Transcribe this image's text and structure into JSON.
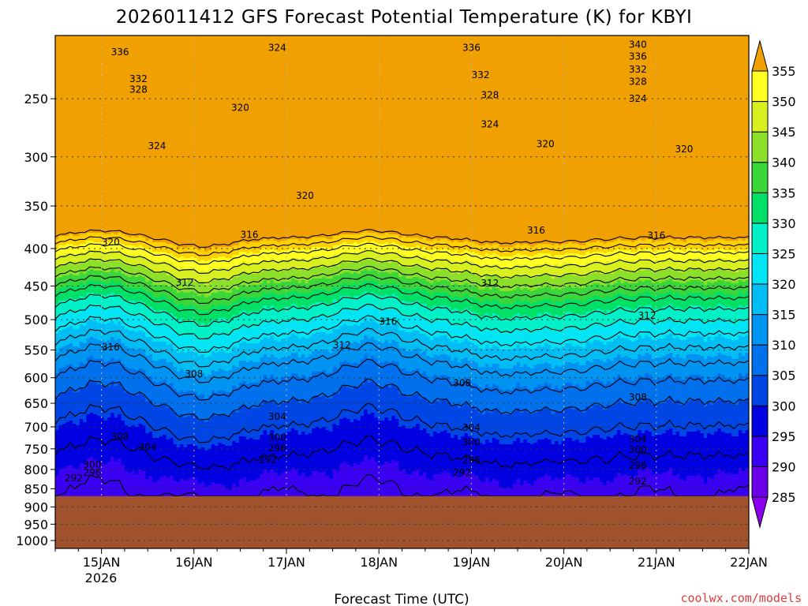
{
  "chart_data": {
    "type": "heatmap",
    "title": "2026011412 GFS Forecast Potential Temperature (K) for KBYI",
    "xlabel": "Forecast Time (UTC)",
    "ylabel": "",
    "credit": "coolwx.com/models",
    "x_ticks": [
      "15JAN",
      "16JAN",
      "17JAN",
      "18JAN",
      "19JAN",
      "20JAN",
      "21JAN",
      "22JAN"
    ],
    "x_year_label": "2026",
    "y_ticks": [
      250,
      300,
      350,
      400,
      450,
      500,
      550,
      600,
      650,
      700,
      750,
      800,
      850,
      900,
      950,
      1000
    ],
    "y_scale": "log-pressure",
    "ylim": [
      1025,
      205
    ],
    "xlim_days": [
      14.5,
      22.0
    ],
    "grid": true,
    "ground_level_hpa": 870,
    "ground_color": "#a0522d",
    "colorbar": {
      "levels": [
        285,
        290,
        295,
        300,
        305,
        310,
        315,
        320,
        325,
        330,
        335,
        340,
        345,
        350,
        355
      ],
      "colors": [
        "#8a00ee",
        "#6a00ea",
        "#3a00f2",
        "#0000e0",
        "#0046e4",
        "#0070ec",
        "#0094f2",
        "#00bef4",
        "#00e4f4",
        "#00f0c8",
        "#00e066",
        "#3ad63a",
        "#8ce02a",
        "#d8f020",
        "#ffff22",
        "#ffd000",
        "#f0a000"
      ]
    },
    "contour_labels": [
      {
        "text": "336",
        "x": 15.2,
        "p": 216
      },
      {
        "text": "332",
        "x": 15.4,
        "p": 235
      },
      {
        "text": "328",
        "x": 15.4,
        "p": 243
      },
      {
        "text": "324",
        "x": 15.6,
        "p": 290
      },
      {
        "text": "320",
        "x": 15.1,
        "p": 392
      },
      {
        "text": "316",
        "x": 15.1,
        "p": 545
      },
      {
        "text": "308",
        "x": 15.2,
        "p": 722
      },
      {
        "text": "304",
        "x": 15.5,
        "p": 746
      },
      {
        "text": "300",
        "x": 14.9,
        "p": 788
      },
      {
        "text": "296",
        "x": 14.9,
        "p": 808
      },
      {
        "text": "292",
        "x": 14.7,
        "p": 822
      },
      {
        "text": "324",
        "x": 16.9,
        "p": 213
      },
      {
        "text": "320",
        "x": 16.5,
        "p": 257
      },
      {
        "text": "316",
        "x": 16.6,
        "p": 383
      },
      {
        "text": "312",
        "x": 15.9,
        "p": 445
      },
      {
        "text": "308",
        "x": 16.0,
        "p": 593
      },
      {
        "text": "304",
        "x": 16.9,
        "p": 678
      },
      {
        "text": "300",
        "x": 16.9,
        "p": 724
      },
      {
        "text": "296",
        "x": 16.9,
        "p": 748
      },
      {
        "text": "292",
        "x": 16.8,
        "p": 776
      },
      {
        "text": "320",
        "x": 17.2,
        "p": 339
      },
      {
        "text": "312",
        "x": 17.6,
        "p": 542
      },
      {
        "text": "316",
        "x": 18.1,
        "p": 503
      },
      {
        "text": "336",
        "x": 19.0,
        "p": 213
      },
      {
        "text": "332",
        "x": 19.1,
        "p": 232
      },
      {
        "text": "328",
        "x": 19.2,
        "p": 247
      },
      {
        "text": "324",
        "x": 19.2,
        "p": 271
      },
      {
        "text": "320",
        "x": 19.8,
        "p": 288
      },
      {
        "text": "316",
        "x": 19.7,
        "p": 378
      },
      {
        "text": "312",
        "x": 19.2,
        "p": 446
      },
      {
        "text": "308",
        "x": 18.9,
        "p": 610
      },
      {
        "text": "304",
        "x": 19.0,
        "p": 702
      },
      {
        "text": "300",
        "x": 19.0,
        "p": 735
      },
      {
        "text": "296",
        "x": 19.0,
        "p": 777
      },
      {
        "text": "292",
        "x": 18.9,
        "p": 808
      },
      {
        "text": "340",
        "x": 20.8,
        "p": 211
      },
      {
        "text": "336",
        "x": 20.8,
        "p": 219
      },
      {
        "text": "332",
        "x": 20.8,
        "p": 228
      },
      {
        "text": "328",
        "x": 20.8,
        "p": 237
      },
      {
        "text": "324",
        "x": 20.8,
        "p": 250
      },
      {
        "text": "320",
        "x": 21.3,
        "p": 293
      },
      {
        "text": "316",
        "x": 21.0,
        "p": 384
      },
      {
        "text": "312",
        "x": 20.9,
        "p": 494
      },
      {
        "text": "308",
        "x": 20.8,
        "p": 638
      },
      {
        "text": "304",
        "x": 20.8,
        "p": 727
      },
      {
        "text": "300",
        "x": 20.8,
        "p": 752
      },
      {
        "text": "296",
        "x": 20.8,
        "p": 790
      },
      {
        "text": "292",
        "x": 20.8,
        "p": 830
      }
    ]
  }
}
